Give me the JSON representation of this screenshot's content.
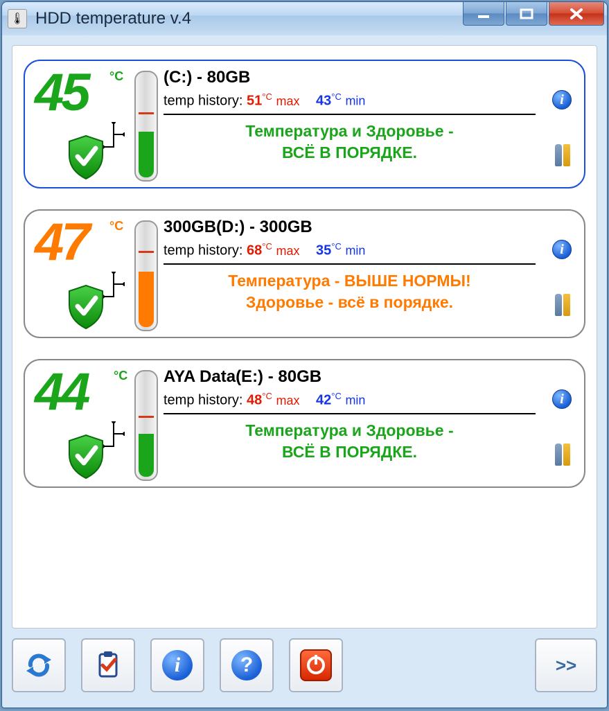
{
  "window": {
    "title": "HDD temperature v.4"
  },
  "colors": {
    "ok": "#1aa51a",
    "warn": "#ff7a00",
    "max": "#e31b00",
    "min": "#1636e6",
    "tick_red": "#d43a1a",
    "tick_blue": "#1a3ad6"
  },
  "labels": {
    "temp_history": "temp history:",
    "max_word": "max",
    "min_word": "min",
    "celsius": "°C",
    "expand": ">>"
  },
  "drives": [
    {
      "temp": "45",
      "temp_color": "#1aa51a",
      "unit_left": "122",
      "title": "(C:) - 80GB",
      "max": "51",
      "min": "43",
      "status_line1": "Температура и Здоровье -",
      "status_line2": "ВСЁ В ПОРЯДКЕ.",
      "status_color": "#1aa51a",
      "fill_color": "#1aa51a",
      "fill_height": "66",
      "tick_red_top": "58",
      "tick_blue_top": "92",
      "selected": true
    },
    {
      "temp": "47",
      "temp_color": "#ff7a00",
      "unit_left": "122",
      "title": "300GB(D:) - 300GB",
      "max": "68",
      "min": "35",
      "status_line1": "Температура - ВЫШЕ НОРМЫ!",
      "status_line2": "Здоровье - всё в порядке.",
      "status_color": "#ff7a00",
      "fill_color": "#ff7a00",
      "fill_height": "80",
      "tick_red_top": "42",
      "tick_blue_top": "110",
      "selected": false
    },
    {
      "temp": "44",
      "temp_color": "#1aa51a",
      "unit_left": "128",
      "title": "AYA Data(E:) - 80GB",
      "max": "48",
      "min": "42",
      "status_line1": "Температура и Здоровье -",
      "status_line2": "ВСЁ В ПОРЯДКЕ.",
      "status_color": "#1aa51a",
      "fill_color": "#1aa51a",
      "fill_height": "62",
      "tick_red_top": "64",
      "tick_blue_top": "96",
      "selected": false
    }
  ]
}
